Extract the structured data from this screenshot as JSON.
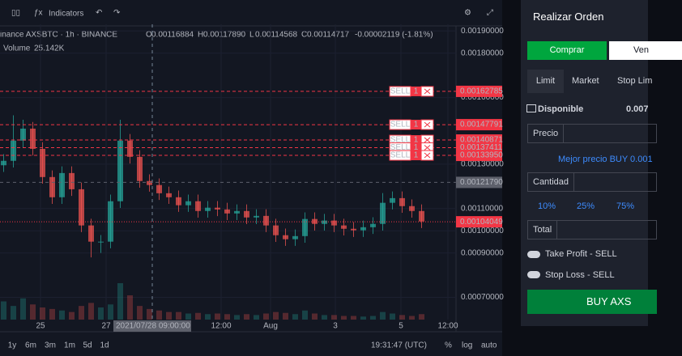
{
  "toolbar": {
    "indicators": "Indicators"
  },
  "legend": {
    "symbol": "inance AXSBTC · 1h · BINANCE",
    "quote": [
      {
        "k": "O",
        "v": "0.00116884"
      },
      {
        "k": "H",
        "v": "0.00117890"
      },
      {
        "k": "L",
        "v": "0.00114568"
      },
      {
        "k": "C",
        "v": "0.00114717"
      }
    ],
    "change": "-0.00002119 (-1.81%)",
    "volume_label": "Volume",
    "volume_value": "25.142K"
  },
  "chart_data": {
    "type": "candlestick",
    "open": [
      0.001295,
      0.001315,
      0.001406,
      0.00146,
      0.001369,
      0.001242,
      0.001151,
      0.00126,
      0.001187,
      0.001024,
      0.000951,
      0.000951,
      0.001133,
      0.001406,
      0.001333,
      0.001224,
      0.001206,
      0.001169,
      0.001151,
      0.001115,
      0.001133,
      0.001089,
      0.001104,
      0.001096,
      0.001078,
      0.001089,
      0.00106,
      0.001067,
      0.001024,
      0.00098,
      0.000962,
      0.000976,
      0.001053,
      0.001031,
      0.001046,
      0.001024,
      0.001009,
      0.001002,
      0.001016,
      0.001031,
      0.001126,
      0.001147,
      0.001111,
      0.001089
    ],
    "high": [
      0.001345,
      0.00152,
      0.0015,
      0.00149,
      0.001399,
      0.001272,
      0.00129,
      0.00129,
      0.001217,
      0.001054,
      0.000981,
      0.001163,
      0.0015,
      0.001436,
      0.001363,
      0.001254,
      0.001236,
      0.001199,
      0.001181,
      0.001163,
      0.001163,
      0.001134,
      0.001134,
      0.001126,
      0.001119,
      0.001119,
      0.001097,
      0.001097,
      0.001054,
      0.00101,
      0.001006,
      0.001083,
      0.001083,
      0.001076,
      0.001076,
      0.001054,
      0.001039,
      0.001046,
      0.001061,
      0.00117,
      0.001177,
      0.001177,
      0.001141,
      0.001119
    ],
    "low": [
      0.001265,
      0.001285,
      0.001376,
      0.001339,
      0.001212,
      0.001121,
      0.001121,
      0.001157,
      0.000994,
      0.00088,
      0.0009,
      0.000921,
      0.001103,
      0.001303,
      0.001194,
      0.001176,
      0.001139,
      0.001121,
      0.001085,
      0.001085,
      0.001059,
      0.001059,
      0.001066,
      0.001048,
      0.001048,
      0.00103,
      0.00103,
      0.000994,
      0.00095,
      0.000932,
      0.000932,
      0.000946,
      0.001001,
      0.001001,
      0.000994,
      0.000979,
      0.000972,
      0.000972,
      0.000986,
      0.001001,
      0.001096,
      0.001081,
      0.001059,
      0.001012
    ],
    "close": [
      0.001315,
      0.001406,
      0.00146,
      0.001369,
      0.001242,
      0.001151,
      0.00126,
      0.001187,
      0.001024,
      0.000951,
      0.000951,
      0.001133,
      0.001406,
      0.001333,
      0.001224,
      0.001206,
      0.001169,
      0.001151,
      0.001115,
      0.001133,
      0.001089,
      0.001104,
      0.001096,
      0.001078,
      0.001089,
      0.00106,
      0.001067,
      0.001024,
      0.00098,
      0.000962,
      0.000976,
      0.001053,
      0.001031,
      0.001046,
      0.001024,
      0.001009,
      0.001002,
      0.001016,
      0.001031,
      0.001126,
      0.001147,
      0.001111,
      0.001089,
      0.001042
    ],
    "volume": [
      60,
      45,
      70,
      50,
      40,
      35,
      30,
      25,
      45,
      55,
      40,
      50,
      120,
      80,
      45,
      35,
      30,
      25,
      25,
      20,
      22,
      18,
      20,
      18,
      15,
      18,
      15,
      20,
      25,
      22,
      18,
      30,
      20,
      15,
      15,
      12,
      12,
      10,
      12,
      25,
      20,
      15,
      12,
      18
    ],
    "up_color": "#26a69a",
    "down_color": "#ef5350",
    "ylim": [
      0.0006,
      0.00193
    ],
    "yticks": [
      {
        "value": 0.0019,
        "label": "0.00190000"
      },
      {
        "value": 0.0018,
        "label": "0.00180000"
      },
      {
        "value": 0.0016,
        "label": "0.00160000"
      },
      {
        "value": 0.0013,
        "label": "0.00130000"
      },
      {
        "value": 0.0011,
        "label": "0.00110000"
      },
      {
        "value": 0.001,
        "label": "0.00100000"
      },
      {
        "value": 0.0009,
        "label": "0.00090000"
      },
      {
        "value": 0.0007,
        "label": "0.00070000"
      }
    ],
    "orders": [
      {
        "side": "SELL",
        "qty": "1",
        "price": 0.00162785
      },
      {
        "side": "SELL",
        "qty": "1",
        "price": 0.00147791
      },
      {
        "side": "SELL",
        "qty": "1",
        "price": 0.00140871
      },
      {
        "side": "SELL",
        "qty": "1",
        "price": 0.00137411
      },
      {
        "side": "SELL",
        "qty": "1",
        "price": {
          "value": 0.0013395,
          "label": "0.00133950"
        }
      }
    ],
    "crosshair_price": {
      "value": 0.0012179,
      "label": "0.00121790"
    },
    "crosshair_time": "2021/07/28  09:00:00",
    "last_price": 0.00104049,
    "x_labels": [
      "25",
      "27",
      "12:00",
      "Aug",
      "3",
      "5",
      "12:00"
    ]
  },
  "bottom_bar": {
    "ranges": [
      "1y",
      "6m",
      "3m",
      "1m",
      "5d",
      "1d"
    ],
    "time": "19:31:47 (UTC)",
    "percent": "%",
    "log": "log",
    "auto": "auto"
  },
  "order_panel": {
    "title": "Realizar Orden",
    "buy": "Comprar",
    "sell": "Ven",
    "tabs": [
      "Limit",
      "Market",
      "Stop Lim"
    ],
    "available_label": "Disponible",
    "available": "0.007",
    "price_label": "Precio",
    "best_price": "Mejor precio BUY 0.001",
    "quantity_label": "Cantidad",
    "percents": [
      "10%",
      "25%",
      "75%"
    ],
    "total_label": "Total",
    "take_profit": "Take Profit - SELL",
    "stop_loss": "Stop Loss - SELL",
    "submit": "BUY AXS"
  }
}
